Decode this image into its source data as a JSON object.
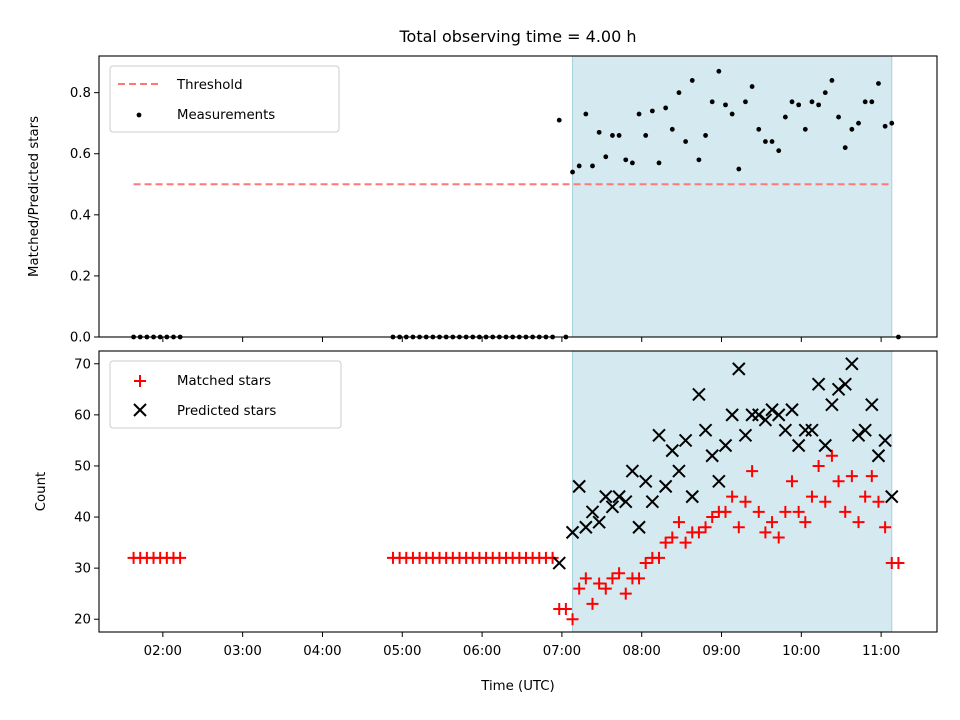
{
  "figure": {
    "title": "Total observing time = 4.00 h"
  },
  "chart_data": [
    {
      "type": "scatter",
      "ylabel": "Matched/Predicted stars",
      "ylim": [
        0,
        0.92
      ],
      "yticks": [
        0.0,
        0.2,
        0.4,
        0.6,
        0.8
      ],
      "ytick_labels": [
        "0.0",
        "0.2",
        "0.4",
        "0.6",
        "0.8"
      ],
      "xlim": [
        "01:12",
        "11:42"
      ],
      "observing_window": [
        "07:08",
        "11:08"
      ],
      "window_color": "#d4eaf0",
      "legend_position": "upper left",
      "threshold": {
        "name": "Threshold",
        "value": 0.5,
        "x_range": [
          "01:38",
          "11:08"
        ],
        "color": "#ff7777",
        "style": "dashed"
      },
      "series": [
        {
          "name": "Measurements",
          "color": "#000000",
          "marker": "dot",
          "points": [
            [
              "01:38",
              0
            ],
            [
              "01:43",
              0
            ],
            [
              "01:48",
              0
            ],
            [
              "01:53",
              0
            ],
            [
              "01:58",
              0
            ],
            [
              "02:03",
              0
            ],
            [
              "02:08",
              0
            ],
            [
              "02:13",
              0
            ],
            [
              "04:53",
              0
            ],
            [
              "04:58",
              0
            ],
            [
              "05:03",
              0
            ],
            [
              "05:08",
              0
            ],
            [
              "05:13",
              0
            ],
            [
              "05:18",
              0
            ],
            [
              "05:23",
              0
            ],
            [
              "05:28",
              0
            ],
            [
              "05:33",
              0
            ],
            [
              "05:38",
              0
            ],
            [
              "05:43",
              0
            ],
            [
              "05:48",
              0
            ],
            [
              "05:53",
              0
            ],
            [
              "05:58",
              0
            ],
            [
              "06:03",
              0
            ],
            [
              "06:08",
              0
            ],
            [
              "06:13",
              0
            ],
            [
              "06:18",
              0
            ],
            [
              "06:23",
              0
            ],
            [
              "06:28",
              0
            ],
            [
              "06:33",
              0
            ],
            [
              "06:38",
              0
            ],
            [
              "06:43",
              0
            ],
            [
              "06:48",
              0
            ],
            [
              "06:53",
              0
            ],
            [
              "06:58",
              0.71
            ],
            [
              "07:03",
              0
            ],
            [
              "07:08",
              0.54
            ],
            [
              "07:13",
              0.56
            ],
            [
              "07:18",
              0.73
            ],
            [
              "07:23",
              0.56
            ],
            [
              "07:28",
              0.67
            ],
            [
              "07:33",
              0.59
            ],
            [
              "07:38",
              0.66
            ],
            [
              "07:43",
              0.66
            ],
            [
              "07:48",
              0.58
            ],
            [
              "07:53",
              0.57
            ],
            [
              "07:58",
              0.73
            ],
            [
              "08:03",
              0.66
            ],
            [
              "08:08",
              0.74
            ],
            [
              "08:13",
              0.57
            ],
            [
              "08:18",
              0.75
            ],
            [
              "08:23",
              0.68
            ],
            [
              "08:28",
              0.8
            ],
            [
              "08:33",
              0.64
            ],
            [
              "08:38",
              0.84
            ],
            [
              "08:43",
              0.58
            ],
            [
              "08:48",
              0.66
            ],
            [
              "08:53",
              0.77
            ],
            [
              "08:58",
              0.87
            ],
            [
              "09:03",
              0.76
            ],
            [
              "09:08",
              0.73
            ],
            [
              "09:13",
              0.55
            ],
            [
              "09:18",
              0.77
            ],
            [
              "09:23",
              0.82
            ],
            [
              "09:28",
              0.68
            ],
            [
              "09:33",
              0.64
            ],
            [
              "09:38",
              0.64
            ],
            [
              "09:43",
              0.61
            ],
            [
              "09:48",
              0.72
            ],
            [
              "09:53",
              0.77
            ],
            [
              "09:58",
              0.76
            ],
            [
              "10:03",
              0.68
            ],
            [
              "10:08",
              0.77
            ],
            [
              "10:13",
              0.76
            ],
            [
              "10:18",
              0.8
            ],
            [
              "10:23",
              0.84
            ],
            [
              "10:28",
              0.72
            ],
            [
              "10:33",
              0.62
            ],
            [
              "10:38",
              0.68
            ],
            [
              "10:43",
              0.7
            ],
            [
              "10:48",
              0.77
            ],
            [
              "10:53",
              0.77
            ],
            [
              "10:58",
              0.83
            ],
            [
              "11:03",
              0.69
            ],
            [
              "11:08",
              0.7
            ],
            [
              "11:13",
              0
            ]
          ]
        }
      ]
    },
    {
      "type": "scatter",
      "xlabel": "Time (UTC)",
      "ylabel": "Count",
      "ylim": [
        17.5,
        72.5
      ],
      "yticks": [
        20,
        30,
        40,
        50,
        60,
        70
      ],
      "ytick_labels": [
        "20",
        "30",
        "40",
        "50",
        "60",
        "70"
      ],
      "xlim": [
        "01:12",
        "11:42"
      ],
      "xticks": [
        "02:00",
        "03:00",
        "04:00",
        "05:00",
        "06:00",
        "07:00",
        "08:00",
        "09:00",
        "10:00",
        "11:00"
      ],
      "xtick_labels": [
        "02:00",
        "03:00",
        "04:00",
        "05:00",
        "06:00",
        "07:00",
        "08:00",
        "09:00",
        "10:00",
        "11:00"
      ],
      "observing_window": [
        "07:08",
        "11:08"
      ],
      "window_color": "#d4eaf0",
      "legend_position": "upper left",
      "series": [
        {
          "name": "Matched stars",
          "color": "#ff0000",
          "marker": "plus",
          "points": [
            [
              "01:38",
              32
            ],
            [
              "01:43",
              32
            ],
            [
              "01:48",
              32
            ],
            [
              "01:53",
              32
            ],
            [
              "01:58",
              32
            ],
            [
              "02:03",
              32
            ],
            [
              "02:08",
              32
            ],
            [
              "02:13",
              32
            ],
            [
              "04:53",
              32
            ],
            [
              "04:58",
              32
            ],
            [
              "05:03",
              32
            ],
            [
              "05:08",
              32
            ],
            [
              "05:13",
              32
            ],
            [
              "05:18",
              32
            ],
            [
              "05:23",
              32
            ],
            [
              "05:28",
              32
            ],
            [
              "05:33",
              32
            ],
            [
              "05:38",
              32
            ],
            [
              "05:43",
              32
            ],
            [
              "05:48",
              32
            ],
            [
              "05:53",
              32
            ],
            [
              "05:58",
              32
            ],
            [
              "06:03",
              32
            ],
            [
              "06:08",
              32
            ],
            [
              "06:13",
              32
            ],
            [
              "06:18",
              32
            ],
            [
              "06:23",
              32
            ],
            [
              "06:28",
              32
            ],
            [
              "06:33",
              32
            ],
            [
              "06:38",
              32
            ],
            [
              "06:43",
              32
            ],
            [
              "06:48",
              32
            ],
            [
              "06:53",
              32
            ],
            [
              "06:58",
              22
            ],
            [
              "07:03",
              22
            ],
            [
              "07:08",
              20
            ],
            [
              "07:13",
              26
            ],
            [
              "07:18",
              28
            ],
            [
              "07:23",
              23
            ],
            [
              "07:28",
              27
            ],
            [
              "07:33",
              26
            ],
            [
              "07:38",
              28
            ],
            [
              "07:43",
              29
            ],
            [
              "07:48",
              25
            ],
            [
              "07:53",
              28
            ],
            [
              "07:58",
              28
            ],
            [
              "08:03",
              31
            ],
            [
              "08:08",
              32
            ],
            [
              "08:13",
              32
            ],
            [
              "08:18",
              35
            ],
            [
              "08:23",
              36
            ],
            [
              "08:28",
              39
            ],
            [
              "08:33",
              35
            ],
            [
              "08:38",
              37
            ],
            [
              "08:43",
              37
            ],
            [
              "08:48",
              38
            ],
            [
              "08:53",
              40
            ],
            [
              "08:58",
              41
            ],
            [
              "09:03",
              41
            ],
            [
              "09:08",
              44
            ],
            [
              "09:13",
              38
            ],
            [
              "09:18",
              43
            ],
            [
              "09:23",
              49
            ],
            [
              "09:28",
              41
            ],
            [
              "09:33",
              37
            ],
            [
              "09:38",
              39
            ],
            [
              "09:43",
              36
            ],
            [
              "09:48",
              41
            ],
            [
              "09:53",
              47
            ],
            [
              "09:58",
              41
            ],
            [
              "10:03",
              39
            ],
            [
              "10:08",
              44
            ],
            [
              "10:13",
              50
            ],
            [
              "10:18",
              43
            ],
            [
              "10:23",
              52
            ],
            [
              "10:28",
              47
            ],
            [
              "10:33",
              41
            ],
            [
              "10:38",
              48
            ],
            [
              "10:43",
              39
            ],
            [
              "10:48",
              44
            ],
            [
              "10:53",
              48
            ],
            [
              "10:58",
              43
            ],
            [
              "11:03",
              38
            ],
            [
              "11:08",
              31
            ],
            [
              "11:13",
              31
            ]
          ]
        },
        {
          "name": "Predicted stars",
          "color": "#000000",
          "marker": "x",
          "points": [
            [
              "06:58",
              31
            ],
            [
              "07:08",
              37
            ],
            [
              "07:13",
              46
            ],
            [
              "07:18",
              38
            ],
            [
              "07:23",
              41
            ],
            [
              "07:28",
              39
            ],
            [
              "07:33",
              44
            ],
            [
              "07:38",
              42
            ],
            [
              "07:43",
              44
            ],
            [
              "07:48",
              43
            ],
            [
              "07:53",
              49
            ],
            [
              "07:58",
              38
            ],
            [
              "08:03",
              47
            ],
            [
              "08:08",
              43
            ],
            [
              "08:13",
              56
            ],
            [
              "08:18",
              46
            ],
            [
              "08:23",
              53
            ],
            [
              "08:28",
              49
            ],
            [
              "08:33",
              55
            ],
            [
              "08:38",
              44
            ],
            [
              "08:43",
              64
            ],
            [
              "08:48",
              57
            ],
            [
              "08:53",
              52
            ],
            [
              "08:58",
              47
            ],
            [
              "09:03",
              54
            ],
            [
              "09:08",
              60
            ],
            [
              "09:13",
              69
            ],
            [
              "09:18",
              56
            ],
            [
              "09:23",
              60
            ],
            [
              "09:28",
              60
            ],
            [
              "09:33",
              59
            ],
            [
              "09:38",
              61
            ],
            [
              "09:43",
              60
            ],
            [
              "09:48",
              57
            ],
            [
              "09:53",
              61
            ],
            [
              "09:58",
              54
            ],
            [
              "10:03",
              57
            ],
            [
              "10:08",
              57
            ],
            [
              "10:13",
              66
            ],
            [
              "10:18",
              54
            ],
            [
              "10:23",
              62
            ],
            [
              "10:28",
              65
            ],
            [
              "10:33",
              66
            ],
            [
              "10:38",
              70
            ],
            [
              "10:43",
              56
            ],
            [
              "10:48",
              57
            ],
            [
              "10:53",
              62
            ],
            [
              "10:58",
              52
            ],
            [
              "11:03",
              55
            ],
            [
              "11:08",
              44
            ]
          ]
        }
      ]
    }
  ]
}
